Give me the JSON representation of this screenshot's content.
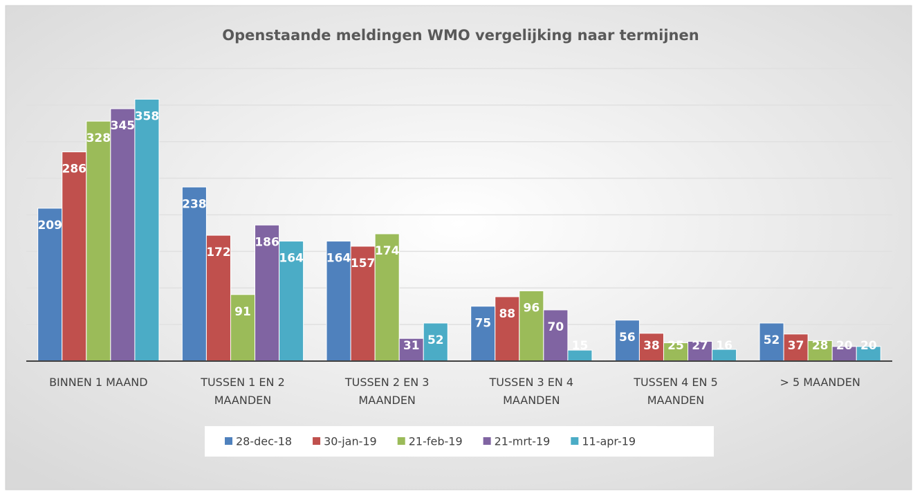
{
  "chart_data": {
    "type": "bar",
    "title": "Openstaande meldingen WMO vergelijking naar termijnen",
    "categories": [
      "BINNEN 1 MAAND",
      "TUSSEN 1 EN 2 MAANDEN",
      "TUSSEN 2 EN 3 MAANDEN",
      "TUSSEN 3 EN 4 MAANDEN",
      "TUSSEN 4 EN 5 MAANDEN",
      "> 5 MAANDEN"
    ],
    "series": [
      {
        "name": "28-dec-18",
        "color": "#4f81bd",
        "values": [
          209,
          238,
          164,
          75,
          56,
          52
        ]
      },
      {
        "name": "30-jan-19",
        "color": "#c0504d",
        "values": [
          286,
          172,
          157,
          88,
          38,
          37
        ]
      },
      {
        "name": "21-feb-19",
        "color": "#9bbb59",
        "values": [
          328,
          91,
          174,
          96,
          25,
          28
        ]
      },
      {
        "name": "21-mrt-19",
        "color": "#8064a2",
        "values": [
          345,
          186,
          31,
          70,
          27,
          20
        ]
      },
      {
        "name": "11-apr-19",
        "color": "#4bacc6",
        "values": [
          358,
          164,
          52,
          15,
          16,
          20
        ]
      }
    ],
    "ylim": [
      0,
      400
    ],
    "yticks": [
      0,
      50,
      100,
      150,
      200,
      250,
      300,
      350,
      400
    ],
    "grid": true,
    "legend": "bottom"
  }
}
